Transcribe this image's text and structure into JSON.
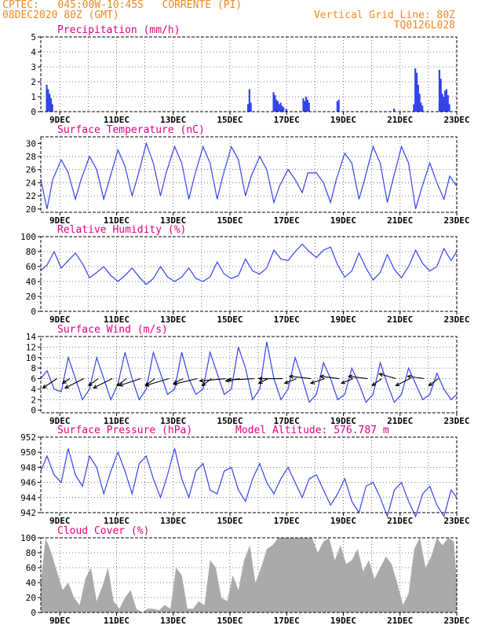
{
  "header": {
    "line1_left": "CPTEC:   045:00W-10:45S   CORRENTE (PI)",
    "line2_left": "08DEC2020 80Z (GMT)",
    "line2_right": "Vertical Grid Line: 80Z",
    "line3_right": "TQ0126L028"
  },
  "colors": {
    "header": "#f08a24",
    "title": "#e6007e",
    "series": "#3344ee",
    "cloud": "#aaaaaa",
    "grid": "#555555"
  },
  "x_tick_labels": [
    "9DEC",
    "11DEC",
    "13DEC",
    "15DEC",
    "17DEC",
    "19DEC",
    "21DEC",
    "23DEC"
  ],
  "chart_data": [
    {
      "id": "precip",
      "type": "bar",
      "title": "Precipitation (mm/h)",
      "x_unit": "day of December 2020",
      "xlim": [
        8.33,
        23
      ],
      "ylim": [
        0,
        5
      ],
      "yticks": [
        0,
        1,
        2,
        3,
        4,
        5
      ],
      "x": [
        8.55,
        8.6,
        8.65,
        8.7,
        8.75,
        15.65,
        15.7,
        15.75,
        16.55,
        16.6,
        16.65,
        16.7,
        16.75,
        16.8,
        16.85,
        16.9,
        17.0,
        17.6,
        17.65,
        17.7,
        17.75,
        17.8,
        18.8,
        18.85,
        20.8,
        21.5,
        21.55,
        21.6,
        21.65,
        21.7,
        21.75,
        21.8,
        22.4,
        22.45,
        22.5,
        22.55,
        22.6,
        22.65,
        22.7,
        22.75
      ],
      "values": [
        1.8,
        1.5,
        1.2,
        0.9,
        0.5,
        0.5,
        1.5,
        0.6,
        1.3,
        1.1,
        0.8,
        0.7,
        0.5,
        0.6,
        0.4,
        0.3,
        0.2,
        0.9,
        0.7,
        1.0,
        0.8,
        0.6,
        0.7,
        0.8,
        0.2,
        0.5,
        2.9,
        2.6,
        1.8,
        1.2,
        0.6,
        0.4,
        2.8,
        2.2,
        1.2,
        1.0,
        1.4,
        1.5,
        1.1,
        0.5
      ]
    },
    {
      "id": "temp",
      "type": "line",
      "title": "Surface Temperature (nC)",
      "xlim": [
        8.33,
        23
      ],
      "ylim": [
        19.5,
        31
      ],
      "yticks": [
        20,
        22,
        24,
        26,
        28,
        30
      ],
      "x": [
        8.33,
        8.55,
        8.75,
        9.05,
        9.3,
        9.55,
        9.75,
        10.05,
        10.3,
        10.55,
        10.75,
        11.05,
        11.3,
        11.55,
        11.75,
        12.05,
        12.3,
        12.55,
        12.75,
        13.05,
        13.3,
        13.55,
        13.75,
        14.05,
        14.3,
        14.55,
        14.75,
        15.05,
        15.3,
        15.55,
        15.75,
        16.05,
        16.3,
        16.55,
        16.75,
        17.05,
        17.3,
        17.55,
        17.75,
        18.05,
        18.3,
        18.55,
        18.75,
        19.05,
        19.3,
        19.55,
        19.75,
        20.05,
        20.3,
        20.55,
        20.75,
        21.05,
        21.3,
        21.55,
        21.75,
        22.05,
        22.3,
        22.55,
        22.75,
        23.0
      ],
      "values": [
        24.5,
        20.0,
        24.5,
        27.5,
        25.5,
        21.5,
        24.5,
        28.0,
        26.0,
        21.5,
        24.5,
        29.0,
        26.5,
        22.0,
        25.0,
        30.0,
        27.0,
        22.0,
        25.5,
        29.5,
        27.0,
        21.5,
        25.0,
        29.5,
        27.0,
        21.5,
        25.0,
        29.5,
        27.5,
        22.0,
        25.0,
        28.0,
        26.0,
        21.0,
        23.5,
        26.0,
        24.5,
        22.5,
        25.5,
        25.5,
        24.0,
        21.0,
        24.5,
        28.5,
        27.0,
        21.5,
        24.5,
        29.5,
        27.0,
        21.0,
        24.5,
        29.5,
        27.0,
        20.0,
        23.0,
        27.0,
        24.0,
        21.5,
        25.0,
        23.5
      ]
    },
    {
      "id": "rh",
      "type": "line",
      "title": "Relative Humidity (%)",
      "xlim": [
        8.33,
        23
      ],
      "ylim": [
        0,
        100
      ],
      "yticks": [
        0,
        20,
        40,
        60,
        80,
        100
      ],
      "x": [
        8.33,
        8.55,
        8.8,
        9.05,
        9.3,
        9.55,
        9.8,
        10.05,
        10.3,
        10.55,
        10.8,
        11.05,
        11.3,
        11.55,
        11.8,
        12.05,
        12.3,
        12.55,
        12.8,
        13.05,
        13.3,
        13.55,
        13.8,
        14.05,
        14.3,
        14.55,
        14.8,
        15.05,
        15.3,
        15.55,
        15.8,
        16.05,
        16.3,
        16.55,
        16.8,
        17.05,
        17.3,
        17.55,
        17.8,
        18.05,
        18.3,
        18.55,
        18.8,
        19.05,
        19.3,
        19.55,
        19.8,
        20.05,
        20.3,
        20.55,
        20.8,
        21.05,
        21.3,
        21.55,
        21.8,
        22.05,
        22.3,
        22.55,
        22.8,
        23.0
      ],
      "values": [
        55,
        62,
        80,
        58,
        68,
        78,
        64,
        45,
        52,
        60,
        48,
        40,
        48,
        58,
        46,
        36,
        44,
        60,
        46,
        40,
        46,
        58,
        44,
        40,
        46,
        66,
        50,
        44,
        48,
        70,
        54,
        50,
        58,
        82,
        70,
        68,
        80,
        90,
        80,
        72,
        82,
        86,
        62,
        46,
        54,
        78,
        58,
        42,
        52,
        76,
        56,
        45,
        60,
        82,
        64,
        54,
        60,
        84,
        68,
        80
      ]
    },
    {
      "id": "wind",
      "type": "line",
      "title": "Surface Wind (m/s)",
      "xlim": [
        8.33,
        23
      ],
      "ylim": [
        -0.5,
        14
      ],
      "yticks": [
        0,
        2,
        4,
        6,
        8,
        10,
        12,
        14
      ],
      "x": [
        8.33,
        8.55,
        8.8,
        9.05,
        9.3,
        9.55,
        9.8,
        10.05,
        10.3,
        10.55,
        10.8,
        11.05,
        11.3,
        11.55,
        11.8,
        12.05,
        12.3,
        12.55,
        12.8,
        13.05,
        13.3,
        13.55,
        13.8,
        14.05,
        14.3,
        14.55,
        14.8,
        15.05,
        15.3,
        15.55,
        15.8,
        16.05,
        16.3,
        16.55,
        16.8,
        17.05,
        17.3,
        17.55,
        17.8,
        18.05,
        18.3,
        18.55,
        18.8,
        19.05,
        19.3,
        19.55,
        19.8,
        20.05,
        20.3,
        20.55,
        20.8,
        21.05,
        21.3,
        21.55,
        21.8,
        22.05,
        22.3,
        22.55,
        22.8,
        23.0
      ],
      "values": [
        6,
        7.5,
        4,
        3.5,
        10,
        6,
        2,
        4,
        10,
        6,
        2,
        5,
        11,
        6,
        2,
        4,
        11,
        7,
        3,
        4,
        11,
        6,
        3,
        4,
        11,
        7,
        3,
        4,
        12,
        8,
        2,
        4,
        13,
        6,
        2,
        4,
        10,
        6,
        1.5,
        3,
        9,
        6,
        2,
        3,
        8,
        5,
        1.5,
        3,
        9,
        5,
        1.5,
        3,
        8,
        5,
        2,
        3,
        7,
        4,
        2,
        3
      ]
    },
    {
      "id": "pressure",
      "type": "line",
      "title": "Surface Pressure (hPa)",
      "annotation": "Model Altitude: 576.787 m",
      "xlim": [
        8.33,
        23
      ],
      "ylim": [
        942,
        952
      ],
      "yticks": [
        942,
        944,
        946,
        948,
        950,
        952
      ],
      "x": [
        8.33,
        8.55,
        8.8,
        9.05,
        9.3,
        9.55,
        9.8,
        10.05,
        10.3,
        10.55,
        10.8,
        11.05,
        11.3,
        11.55,
        11.8,
        12.05,
        12.3,
        12.55,
        12.8,
        13.05,
        13.3,
        13.55,
        13.8,
        14.05,
        14.3,
        14.55,
        14.8,
        15.05,
        15.3,
        15.55,
        15.8,
        16.05,
        16.3,
        16.55,
        16.8,
        17.05,
        17.3,
        17.55,
        17.8,
        18.05,
        18.3,
        18.55,
        18.8,
        19.05,
        19.3,
        19.55,
        19.8,
        20.05,
        20.3,
        20.55,
        20.8,
        21.05,
        21.3,
        21.55,
        21.8,
        22.05,
        22.3,
        22.55,
        22.8,
        23.0
      ],
      "values": [
        947.5,
        949.5,
        947.0,
        946.0,
        950.5,
        947.0,
        945.5,
        949.5,
        948.0,
        944.5,
        947.5,
        950.0,
        947.5,
        944.5,
        948.5,
        949.5,
        946.5,
        944.0,
        947.0,
        950.5,
        946.5,
        944.0,
        947.5,
        948.5,
        945.0,
        944.5,
        947.5,
        948.0,
        945.0,
        943.5,
        946.5,
        948.5,
        946.0,
        944.5,
        946.5,
        948.0,
        946.0,
        944.0,
        946.5,
        947.0,
        945.0,
        943.0,
        944.5,
        946.5,
        943.5,
        942.0,
        945.5,
        946.0,
        944.0,
        941.5,
        945.0,
        946.0,
        943.5,
        941.5,
        944.5,
        945.5,
        943.0,
        941.5,
        945.0,
        944.0
      ]
    },
    {
      "id": "cloud",
      "type": "area",
      "title": "Cloud Cover (%)",
      "xlim": [
        8.33,
        23
      ],
      "ylim": [
        0,
        100
      ],
      "yticks": [
        0,
        20,
        40,
        60,
        80,
        100
      ],
      "x": [
        8.33,
        8.5,
        8.7,
        8.9,
        9.1,
        9.3,
        9.5,
        9.7,
        9.9,
        10.1,
        10.3,
        10.5,
        10.7,
        10.9,
        11.1,
        11.3,
        11.5,
        11.7,
        11.9,
        12.1,
        12.3,
        12.5,
        12.7,
        12.9,
        13.1,
        13.3,
        13.5,
        13.7,
        13.9,
        14.1,
        14.3,
        14.5,
        14.7,
        14.9,
        15.1,
        15.3,
        15.5,
        15.7,
        15.9,
        16.1,
        16.3,
        16.5,
        16.7,
        16.9,
        17.1,
        17.3,
        17.5,
        17.7,
        17.9,
        18.1,
        18.3,
        18.5,
        18.7,
        18.9,
        19.1,
        19.3,
        19.5,
        19.7,
        19.9,
        20.1,
        20.3,
        20.5,
        20.7,
        20.9,
        21.1,
        21.3,
        21.5,
        21.7,
        21.9,
        22.1,
        22.3,
        22.5,
        22.7,
        22.9,
        23.0
      ],
      "values": [
        40,
        100,
        80,
        55,
        30,
        40,
        20,
        10,
        45,
        60,
        15,
        35,
        60,
        15,
        5,
        20,
        30,
        5,
        0,
        5,
        5,
        3,
        10,
        5,
        60,
        50,
        5,
        5,
        15,
        10,
        70,
        60,
        20,
        15,
        50,
        30,
        70,
        90,
        40,
        60,
        85,
        90,
        100,
        100,
        100,
        100,
        100,
        100,
        100,
        80,
        95,
        100,
        70,
        90,
        65,
        70,
        85,
        55,
        70,
        45,
        60,
        75,
        65,
        40,
        10,
        25,
        85,
        100,
        60,
        75,
        100,
        90,
        100,
        95,
        40
      ]
    }
  ],
  "wind_vectors": {
    "x": [
      8.9,
      9.35,
      9.85,
      10.35,
      10.85,
      11.35,
      11.85,
      12.35,
      12.85,
      13.35,
      13.85,
      14.35,
      14.85,
      15.35,
      15.85,
      16.35,
      16.85,
      17.35,
      17.85,
      18.35,
      18.85,
      19.35,
      19.85,
      20.35,
      20.85,
      21.35,
      21.85,
      22.35
    ],
    "u": [
      3,
      1.5,
      4,
      2,
      4,
      2,
      4.5,
      2,
      5,
      2,
      5,
      2,
      5.5,
      3,
      5.5,
      2,
      5,
      2.5,
      4.5,
      3,
      4,
      2.5,
      4,
      2,
      3.5,
      3,
      3.5,
      2
    ],
    "v": [
      2,
      1,
      2,
      1.5,
      2,
      1.5,
      1.5,
      1.5,
      1.5,
      1,
      1.2,
      1.5,
      0.5,
      0.5,
      0.3,
      1,
      0,
      1,
      -0.5,
      1,
      -0.5,
      1,
      -0.5,
      1.5,
      -1,
      1.5,
      -0.5,
      1.5
    ]
  }
}
